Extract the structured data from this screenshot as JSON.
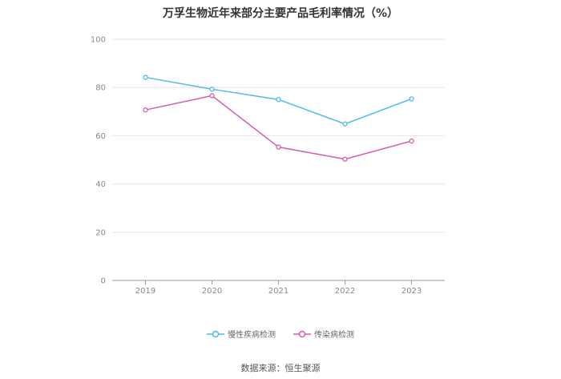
{
  "title": "万孚生物近年来部分主要产品毛利率情况（%）",
  "source": "数据来源：恒生聚源",
  "chart_data": {
    "type": "line",
    "title": "万孚生物近年来部分主要产品毛利率情况（%）",
    "categories": [
      "2019",
      "2020",
      "2021",
      "2022",
      "2023"
    ],
    "yticks": [
      "0",
      "20",
      "40",
      "60",
      "80",
      "100"
    ],
    "ylim": [
      0,
      100
    ],
    "grid": true,
    "legend_position": "bottom",
    "series": [
      {
        "name": "慢性疾病检测",
        "color": "#4dbbea",
        "values": [
          84.2,
          79.3,
          75.0,
          64.9,
          75.3
        ]
      },
      {
        "name": "传染病检测",
        "color": "#d45bb2",
        "values": [
          70.7,
          76.6,
          55.3,
          50.3,
          57.8
        ]
      }
    ]
  }
}
